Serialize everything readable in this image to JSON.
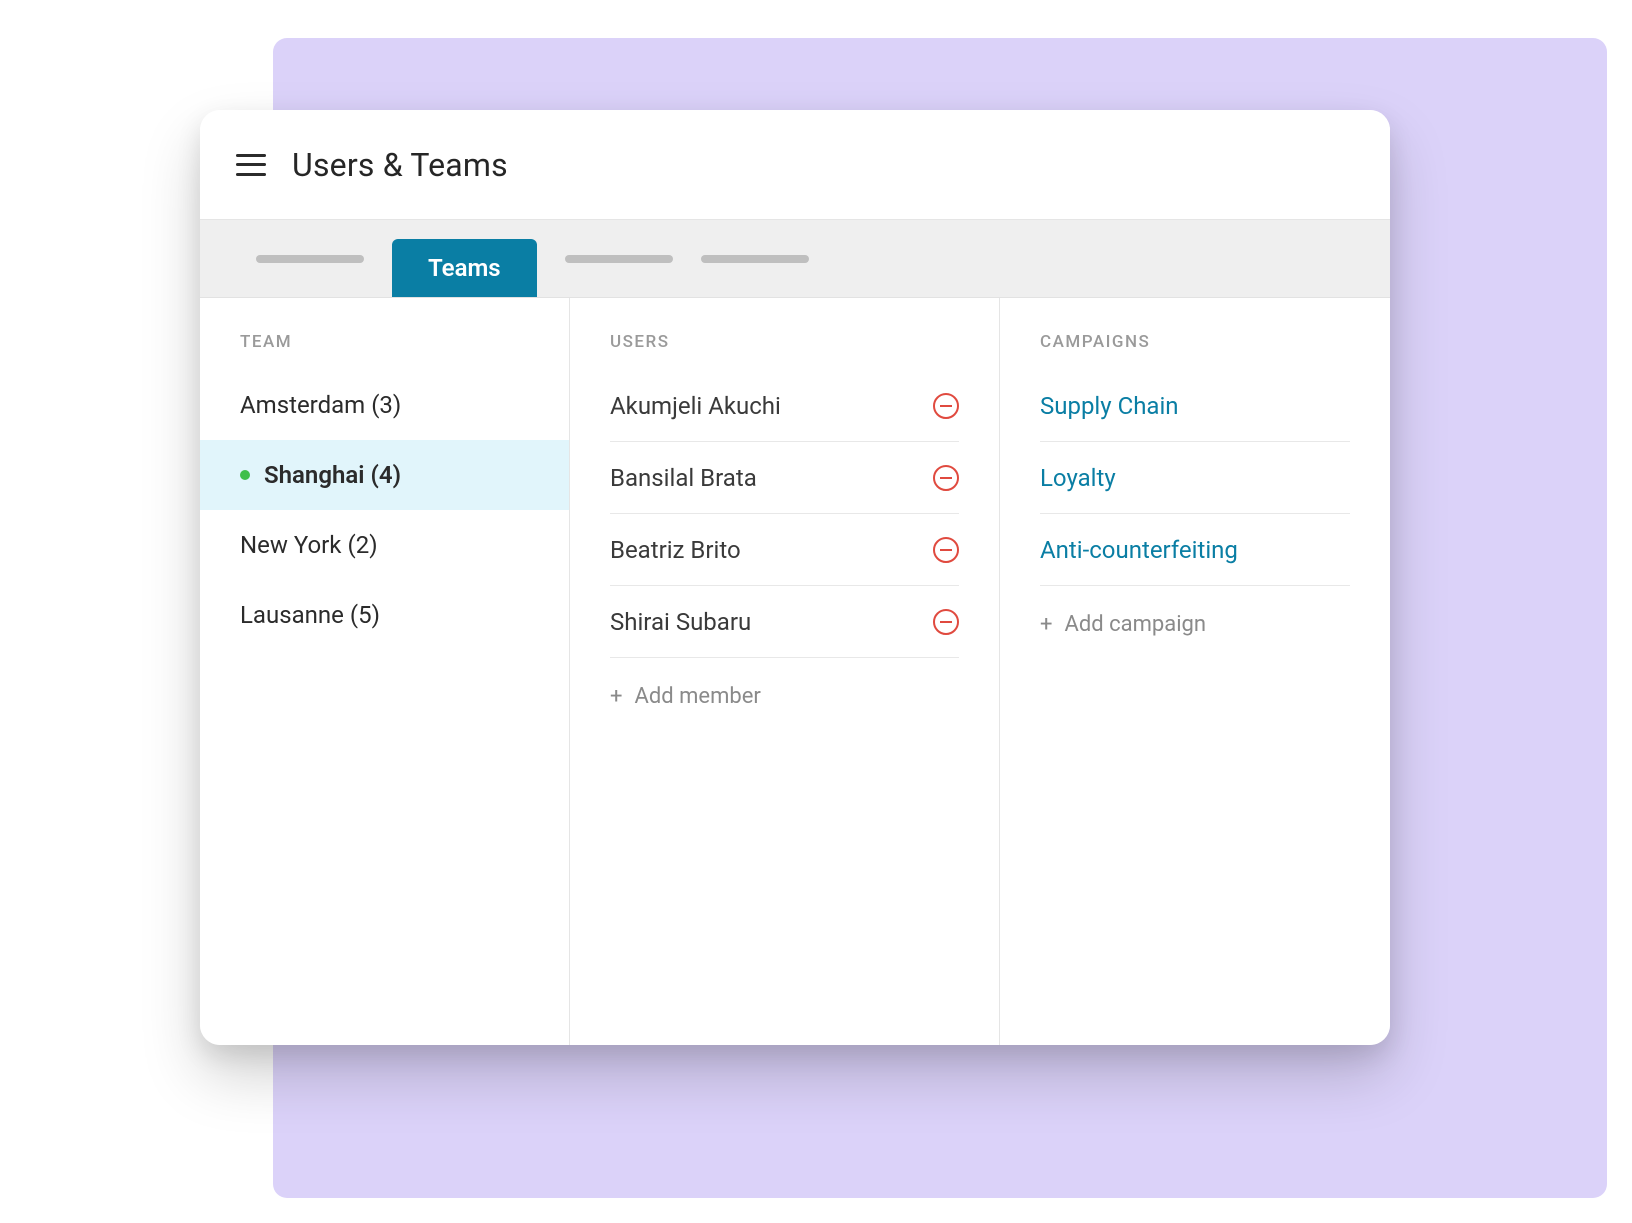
{
  "colors": {
    "page_background": "#ffffff",
    "backdrop": "#dbd2f9",
    "card_background": "#ffffff",
    "tabsbar_background": "#efefef",
    "tab_active_background": "#0a7ea4",
    "tab_active_text": "#ffffff",
    "tab_placeholder": "#bfbfbf",
    "divider": "#e5e5e5",
    "row_divider": "#e8e8e8",
    "text_primary": "#2b2b2b",
    "text_muted": "#9a9a9a",
    "text_link": "#0a7ea4",
    "selected_row_background": "#e1f5fb",
    "status_dot": "#3fbf4a",
    "remove_icon": "#e04a3f"
  },
  "typography": {
    "page_title_fontsize": 32,
    "column_header_fontsize": 17,
    "row_fontsize": 24,
    "tab_fontsize": 24,
    "add_row_fontsize": 22
  },
  "header": {
    "title": "Users & Teams"
  },
  "tabs": {
    "active_label": "Teams",
    "placeholder_count_before": 1,
    "placeholder_count_after": 2
  },
  "columns": {
    "team": {
      "header": "TEAM",
      "items": [
        {
          "label": "Amsterdam",
          "count": "(3)",
          "selected": false
        },
        {
          "label": "Shanghai",
          "count": "(4)",
          "selected": true
        },
        {
          "label": "New York",
          "count": "(2)",
          "selected": false
        },
        {
          "label": "Lausanne",
          "count": "(5)",
          "selected": false
        }
      ]
    },
    "users": {
      "header": "USERS",
      "items": [
        {
          "label": "Akumjeli Akuchi"
        },
        {
          "label": "Bansilal Brata"
        },
        {
          "label": "Beatriz Brito"
        },
        {
          "label": "Shirai Subaru"
        }
      ],
      "add_label": "Add member"
    },
    "campaigns": {
      "header": "CAMPAIGNS",
      "items": [
        {
          "label": "Supply Chain"
        },
        {
          "label": "Loyalty"
        },
        {
          "label": "Anti-counterfeiting"
        }
      ],
      "add_label": "Add campaign"
    }
  }
}
